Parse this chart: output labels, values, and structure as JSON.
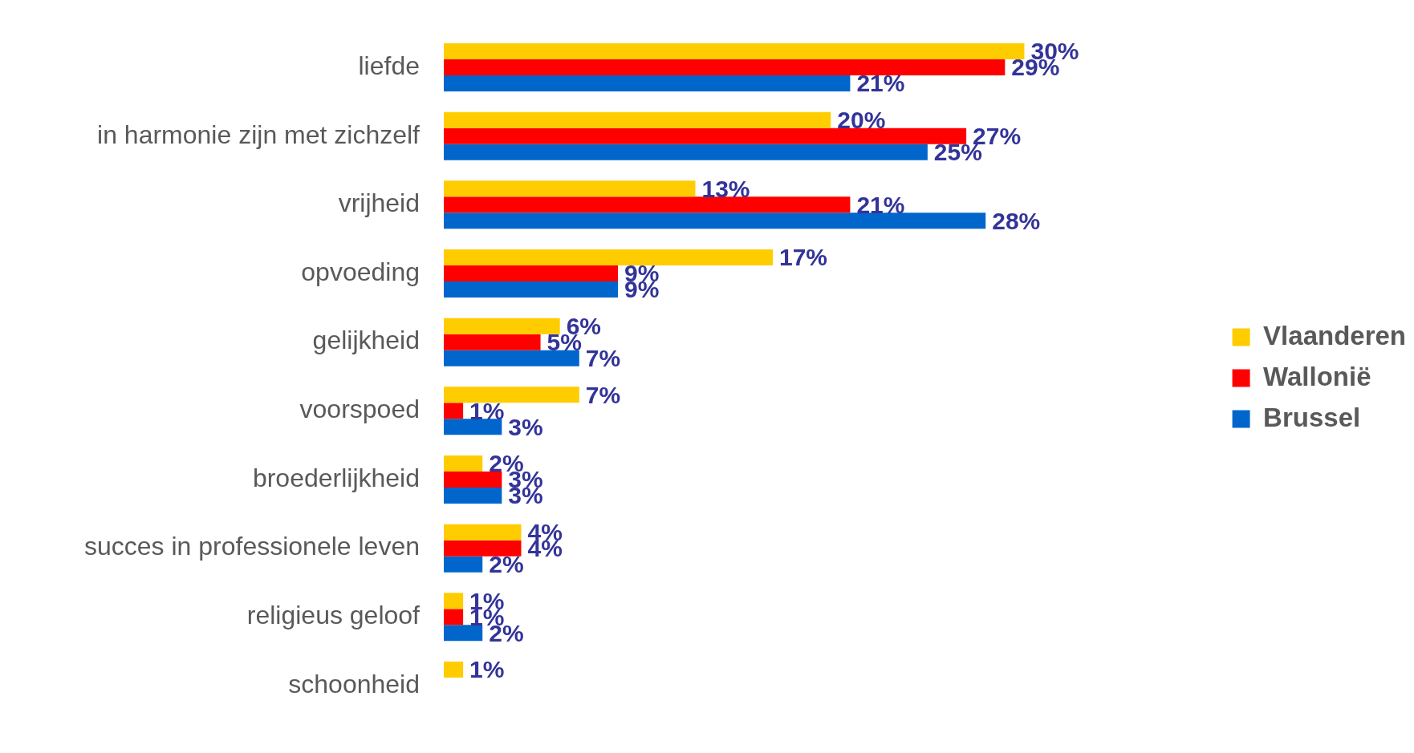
{
  "chart_data": {
    "type": "bar",
    "orientation": "horizontal",
    "categories": [
      "liefde",
      "in harmonie zijn met zichzelf",
      "vrijheid",
      "opvoeding",
      "gelijkheid",
      "voorspoed",
      "broederlijkheid",
      "succes in professionele leven",
      "religieus geloof",
      "schoonheid"
    ],
    "series": [
      {
        "name": "Vlaanderen",
        "color": "#ffcc00",
        "values": [
          30,
          20,
          13,
          17,
          6,
          7,
          2,
          4,
          1,
          1
        ],
        "value_labels": [
          "30%",
          "20%",
          "13%",
          "17%",
          "6%",
          "7%",
          "2%",
          "4%",
          "1%",
          "1%"
        ]
      },
      {
        "name": "Wallonië",
        "color": "#ff0000",
        "values": [
          29,
          27,
          21,
          9,
          5,
          1,
          3,
          4,
          1,
          null
        ],
        "value_labels": [
          "29%",
          "27%",
          "21%",
          "9%",
          "5%",
          "1%",
          "3%",
          "4%",
          "1%",
          null
        ]
      },
      {
        "name": "Brussel",
        "color": "#0066cc",
        "values": [
          21,
          25,
          28,
          9,
          7,
          3,
          3,
          2,
          2,
          null
        ],
        "value_labels": [
          "21%",
          "25%",
          "28%",
          "9%",
          "7%",
          "3%",
          "3%",
          "2%",
          "2%",
          null
        ]
      }
    ],
    "legend": "right",
    "grid": false
  }
}
